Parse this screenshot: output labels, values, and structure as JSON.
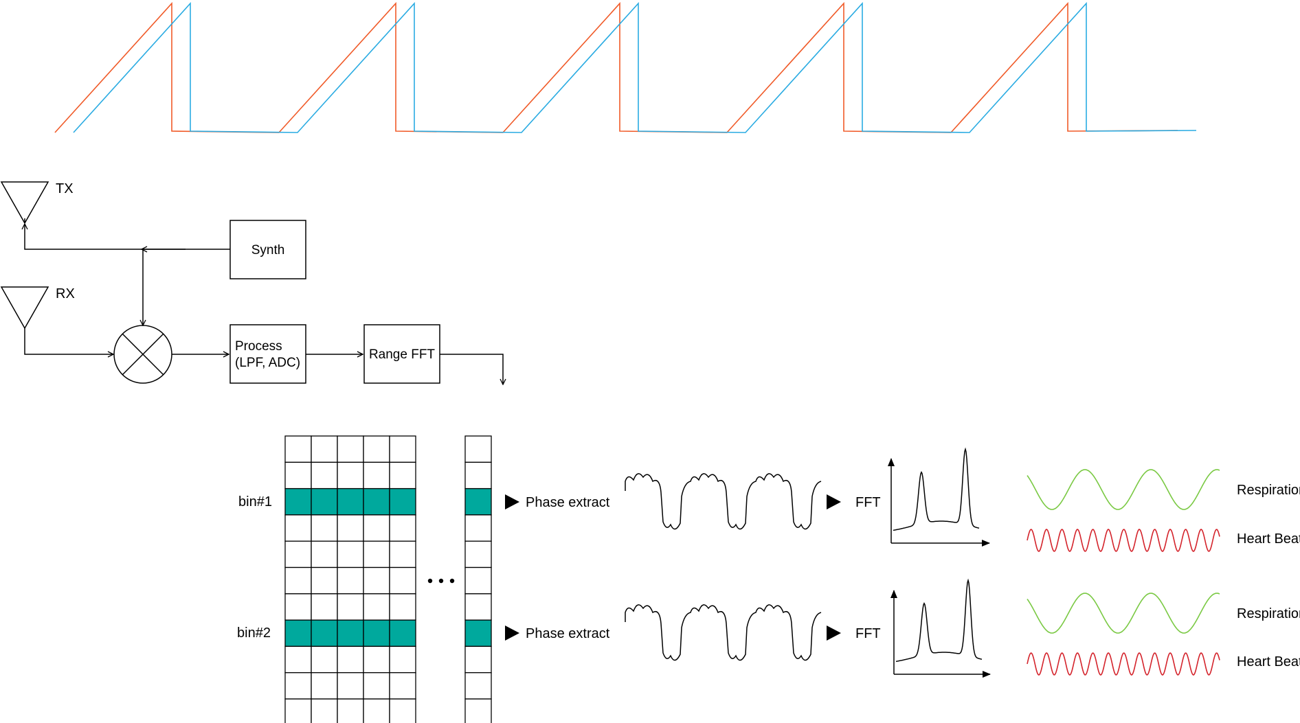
{
  "colors": {
    "tx_chirp": "#f05a28",
    "rx_chirp": "#29abe2",
    "highlight": "#00a99d",
    "respiration": "#7ac943",
    "heartbeat": "#d4232b",
    "line": "#000000"
  },
  "antennas": {
    "tx_label": "TX",
    "rx_label": "RX"
  },
  "blocks": {
    "synth": "Synth",
    "process_line1": "Process",
    "process_line2": "(LPF, ADC)",
    "range_fft": "Range FFT"
  },
  "bins": {
    "bin1_label": "bin#1",
    "bin2_label": "bin#2"
  },
  "pipeline": {
    "phase_extract": "Phase extract",
    "fft": "FFT",
    "respiration": "Respiration",
    "heartbeat": "Heart Beat"
  },
  "icons": {
    "mixer": "mixer-icon",
    "arrow": "play-triangle-icon",
    "ellipsis": "ellipsis-icon"
  }
}
